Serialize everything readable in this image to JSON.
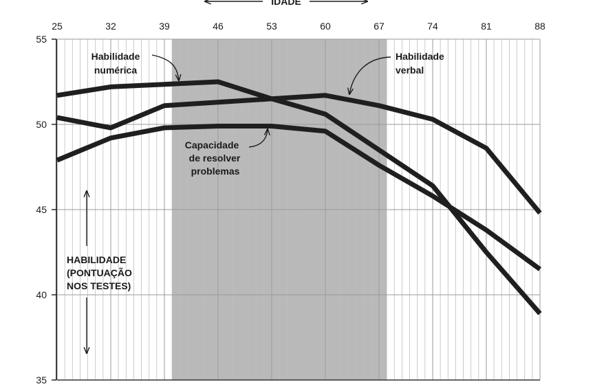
{
  "chart_data": {
    "type": "line",
    "xlabel": "IDADE",
    "ylabel_lines": [
      "HABILIDADE",
      "(PONTUAÇÃO",
      "NOS TESTES)"
    ],
    "x_ticks": [
      25,
      32,
      39,
      46,
      53,
      60,
      67,
      74,
      81,
      88
    ],
    "y_ticks": [
      35,
      40,
      45,
      50,
      55
    ],
    "xlim": [
      25,
      88
    ],
    "ylim": [
      35,
      55
    ],
    "grid": true,
    "shaded_band": {
      "x_start": 40,
      "x_end": 68,
      "color": "#b9b9b9"
    },
    "line_color": "#1f1f1f",
    "series": [
      {
        "name_lines": [
          "Habilidade",
          "numérica"
        ],
        "x": [
          25,
          32,
          39,
          46,
          53,
          60,
          67,
          74,
          81,
          88
        ],
        "y": [
          51.7,
          52.2,
          52.35,
          52.5,
          51.5,
          50.6,
          48.5,
          46.4,
          42.5,
          38.9
        ]
      },
      {
        "name_lines": [
          "Habilidade",
          "verbal"
        ],
        "x": [
          25,
          32,
          39,
          46,
          53,
          60,
          67,
          74,
          81,
          88
        ],
        "y": [
          50.4,
          49.8,
          51.1,
          51.3,
          51.5,
          51.7,
          51.1,
          50.3,
          48.6,
          44.8
        ]
      },
      {
        "name_lines": [
          "Capacidade",
          "de resolver",
          "problemas"
        ],
        "x": [
          25,
          32,
          39,
          46,
          53,
          60,
          67,
          74,
          81,
          88
        ],
        "y": [
          47.9,
          49.2,
          49.8,
          49.9,
          49.9,
          49.6,
          47.6,
          45.8,
          43.8,
          41.5
        ]
      }
    ]
  }
}
